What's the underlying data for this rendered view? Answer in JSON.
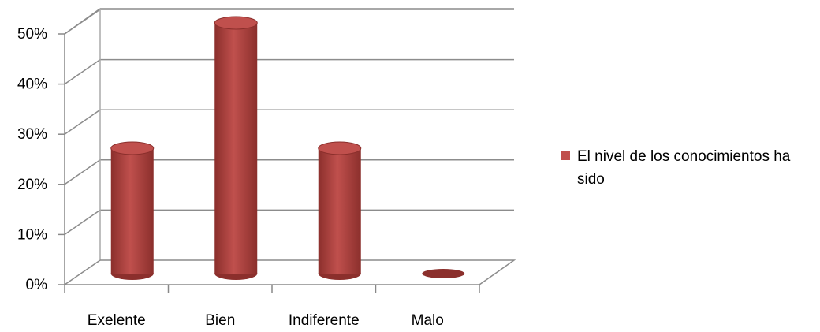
{
  "chart_data": {
    "type": "bar",
    "style": "3d-cylinder",
    "categories": [
      "Exelente",
      "Bien",
      "Indiferente",
      "Malo"
    ],
    "series": [
      {
        "name": "El nivel de los conocimientos ha sido",
        "values": [
          25,
          50,
          25,
          0
        ]
      }
    ],
    "ylim": [
      0,
      50
    ],
    "ytick_labels": [
      "0%",
      "10%",
      "20%",
      "30%",
      "40%",
      "50%"
    ],
    "grid": true,
    "legend_position": "right",
    "colors": {
      "bar": "#c0504d",
      "bar_dark": "#8b2f2c",
      "bar_light": "#e5a3a1",
      "grid": "#8c8c8c"
    }
  }
}
